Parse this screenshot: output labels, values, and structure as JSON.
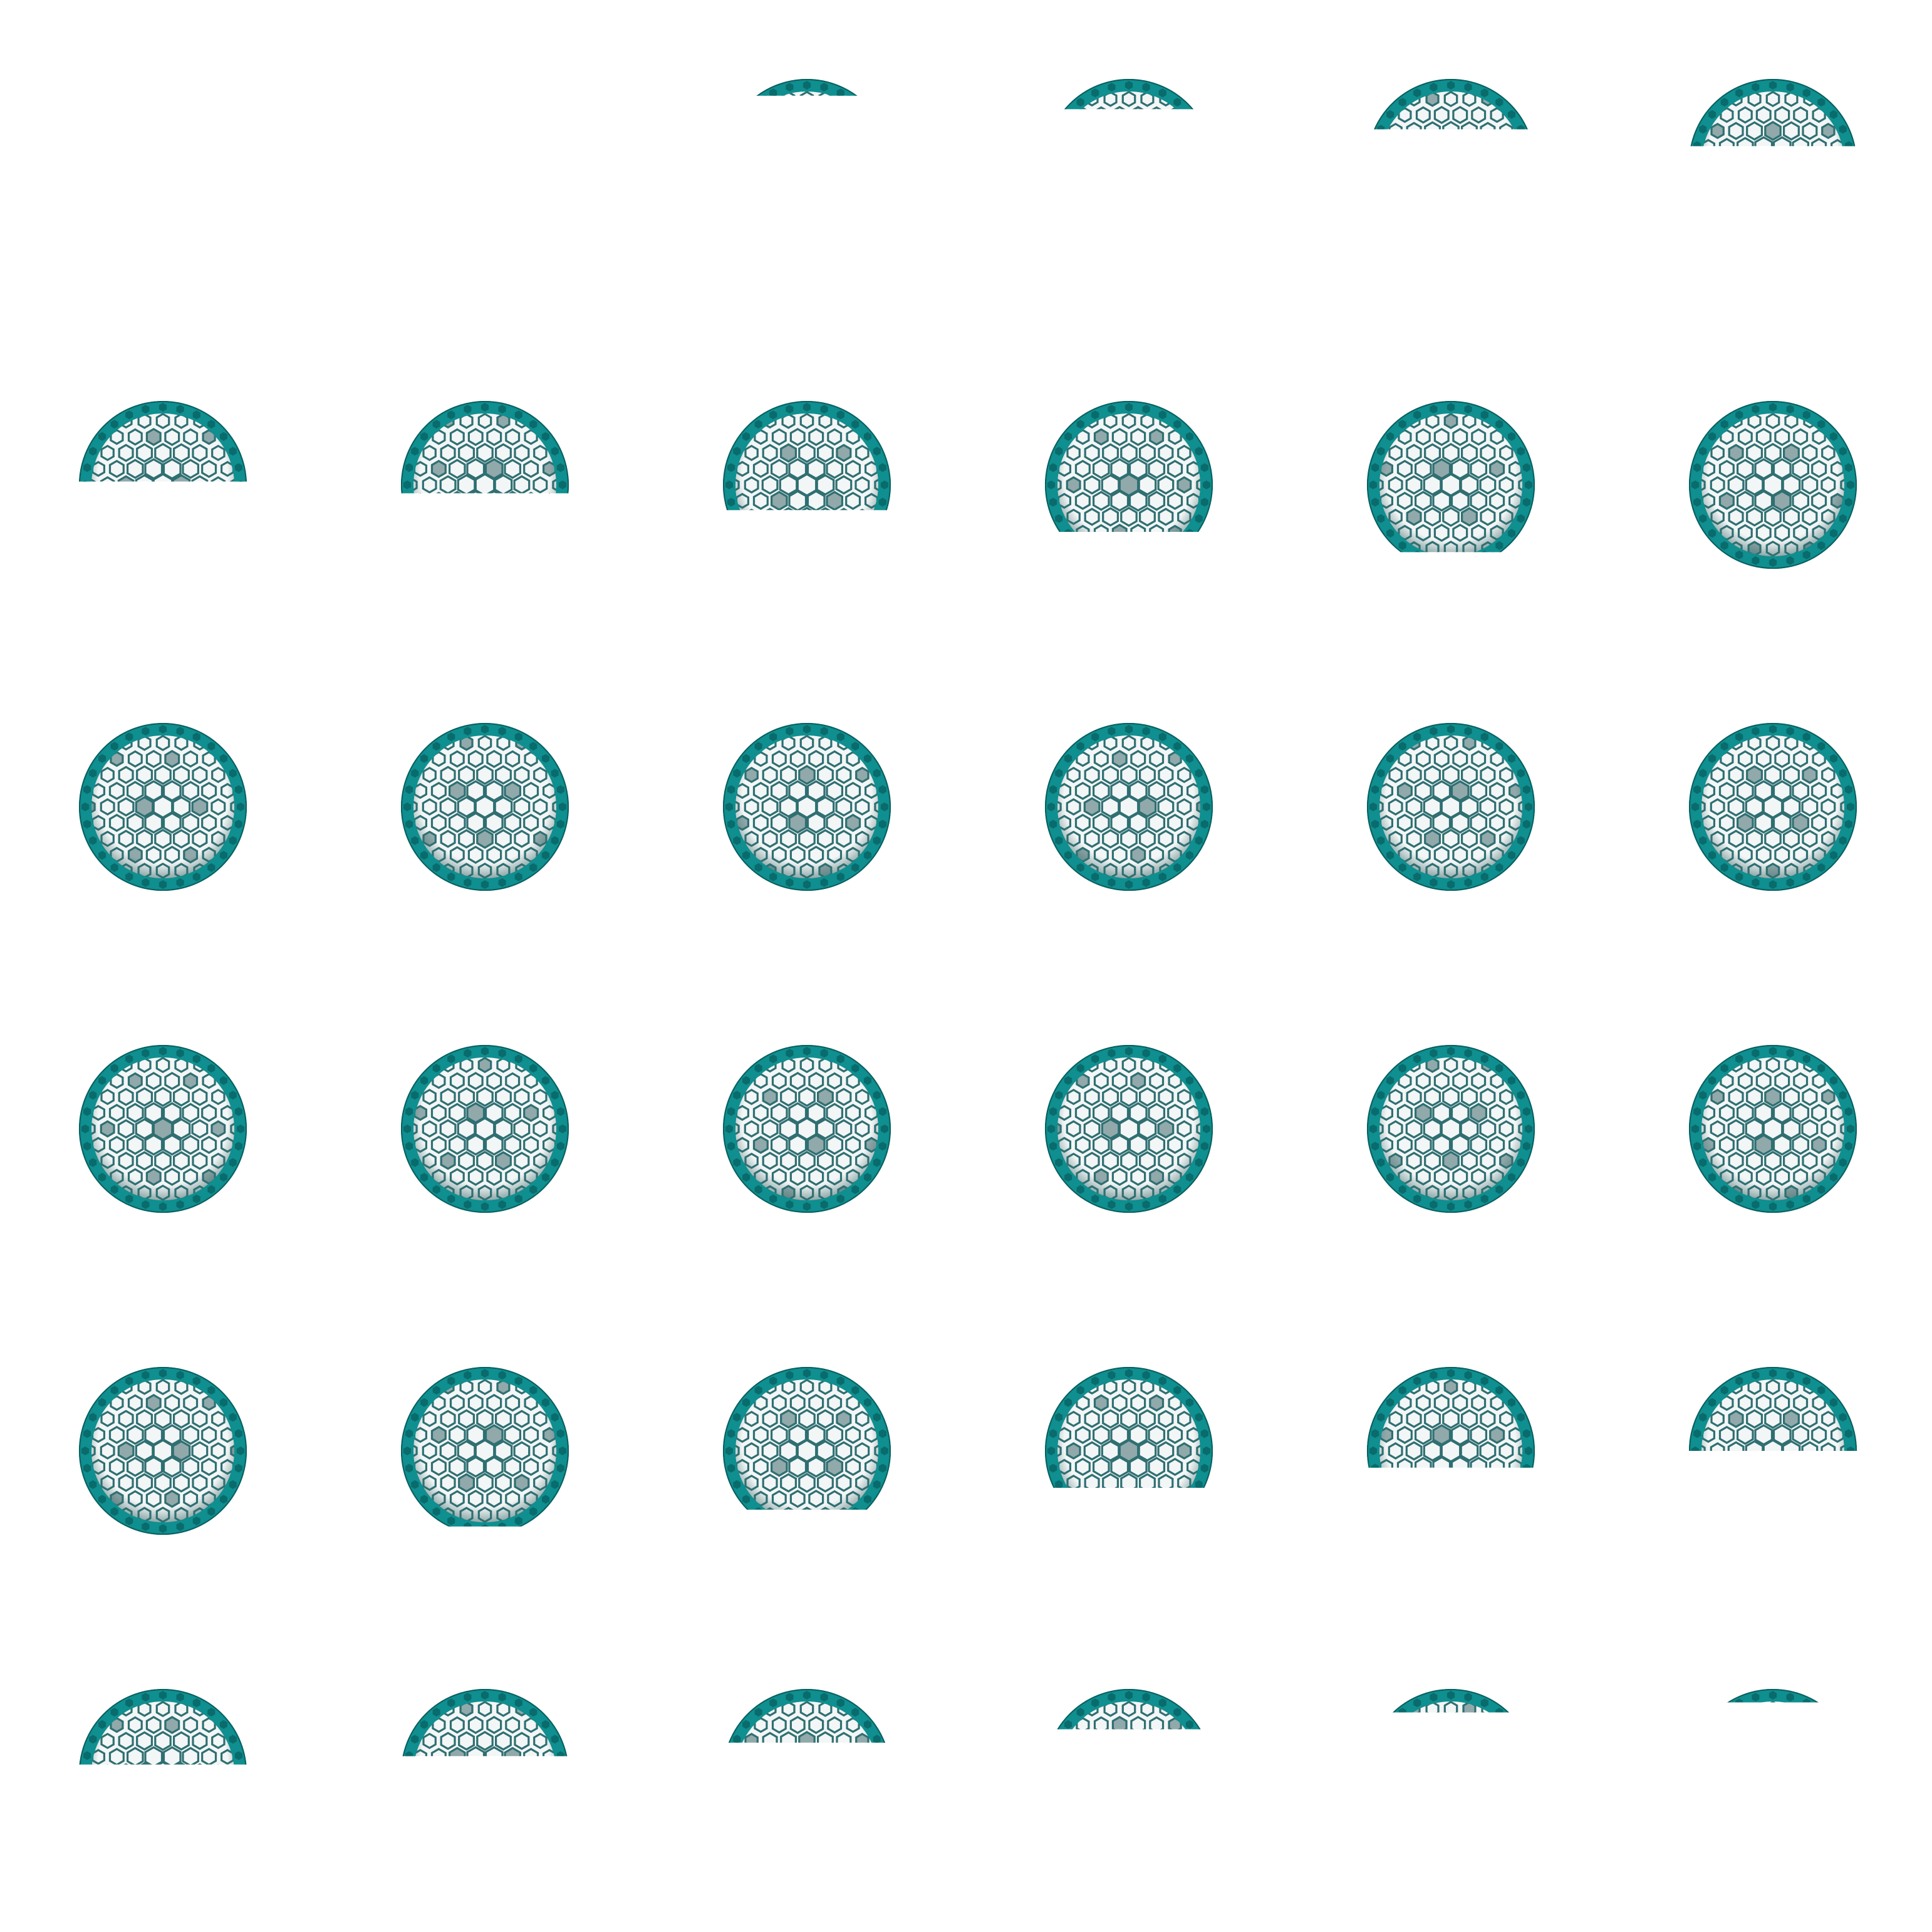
{
  "sprite_sheet": {
    "columns": 6,
    "rows": 6,
    "subject": "hexagon-lattice-sphere",
    "animation": "rise-appear-then-sink-disappear",
    "colors": {
      "shell": "#0f8f8f",
      "shell_dark": "#0a5f60",
      "hex_outline": "#2f6f72",
      "hex_fill_dark": "#3f6a6b",
      "interior": "#f3f6f6",
      "background": "#ffffff",
      "ground_shadow": "#d9d9d9"
    },
    "frames": [
      {
        "visible_fraction": 0.0,
        "ground_shadow": false
      },
      {
        "visible_fraction": 0.0,
        "ground_shadow": false
      },
      {
        "visible_fraction": 0.1,
        "ground_shadow": false
      },
      {
        "visible_fraction": 0.18,
        "ground_shadow": false
      },
      {
        "visible_fraction": 0.3,
        "ground_shadow": false
      },
      {
        "visible_fraction": 0.4,
        "ground_shadow": false
      },
      {
        "visible_fraction": 0.48,
        "ground_shadow": false
      },
      {
        "visible_fraction": 0.55,
        "ground_shadow": false
      },
      {
        "visible_fraction": 0.65,
        "ground_shadow": false
      },
      {
        "visible_fraction": 0.78,
        "ground_shadow": false
      },
      {
        "visible_fraction": 0.9,
        "ground_shadow": false
      },
      {
        "visible_fraction": 1.0,
        "ground_shadow": false
      },
      {
        "visible_fraction": 1.0,
        "ground_shadow": true
      },
      {
        "visible_fraction": 1.0,
        "ground_shadow": true
      },
      {
        "visible_fraction": 1.0,
        "ground_shadow": true
      },
      {
        "visible_fraction": 1.0,
        "ground_shadow": true
      },
      {
        "visible_fraction": 1.0,
        "ground_shadow": true
      },
      {
        "visible_fraction": 1.0,
        "ground_shadow": true
      },
      {
        "visible_fraction": 1.0,
        "ground_shadow": false
      },
      {
        "visible_fraction": 1.0,
        "ground_shadow": false
      },
      {
        "visible_fraction": 1.0,
        "ground_shadow": false
      },
      {
        "visible_fraction": 1.0,
        "ground_shadow": false
      },
      {
        "visible_fraction": 1.0,
        "ground_shadow": false
      },
      {
        "visible_fraction": 1.0,
        "ground_shadow": false
      },
      {
        "visible_fraction": 1.0,
        "ground_shadow": true
      },
      {
        "visible_fraction": 0.95,
        "ground_shadow": true
      },
      {
        "visible_fraction": 0.85,
        "ground_shadow": true
      },
      {
        "visible_fraction": 0.72,
        "ground_shadow": true
      },
      {
        "visible_fraction": 0.6,
        "ground_shadow": true
      },
      {
        "visible_fraction": 0.5,
        "ground_shadow": true
      },
      {
        "visible_fraction": 0.45,
        "ground_shadow": false
      },
      {
        "visible_fraction": 0.4,
        "ground_shadow": false
      },
      {
        "visible_fraction": 0.32,
        "ground_shadow": false
      },
      {
        "visible_fraction": 0.24,
        "ground_shadow": false
      },
      {
        "visible_fraction": 0.14,
        "ground_shadow": false
      },
      {
        "visible_fraction": 0.08,
        "ground_shadow": false
      }
    ]
  }
}
